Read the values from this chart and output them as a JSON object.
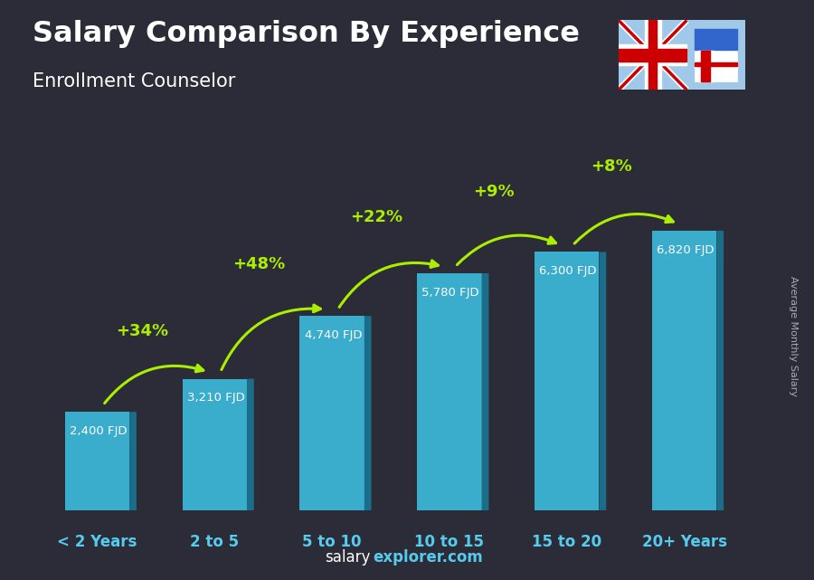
{
  "categories": [
    "< 2 Years",
    "2 to 5",
    "5 to 10",
    "10 to 15",
    "15 to 20",
    "20+ Years"
  ],
  "values": [
    2400,
    3210,
    4740,
    5780,
    6300,
    6820
  ],
  "labels": [
    "2,400 FJD",
    "3,210 FJD",
    "4,740 FJD",
    "5,780 FJD",
    "6,300 FJD",
    "6,820 FJD"
  ],
  "pct_changes": [
    "+34%",
    "+48%",
    "+22%",
    "+9%",
    "+8%"
  ],
  "title": "Salary Comparison By Experience",
  "subtitle": "Enrollment Counselor",
  "ylabel_right": "Average Monthly Salary",
  "bar_color_main": "#3aaccc",
  "bar_color_side": "#1a6e8a",
  "bar_color_top": "#5ac8e8",
  "bg_color": "#2a2a35",
  "arrow_color": "#aaee00",
  "text_color": "#ffffff",
  "pct_color": "#aaee00",
  "label_color": "#cceeee",
  "xlabel_color": "#55ccee",
  "ymax": 8200,
  "footer_normal": "salary",
  "footer_bold": "explorer.com"
}
